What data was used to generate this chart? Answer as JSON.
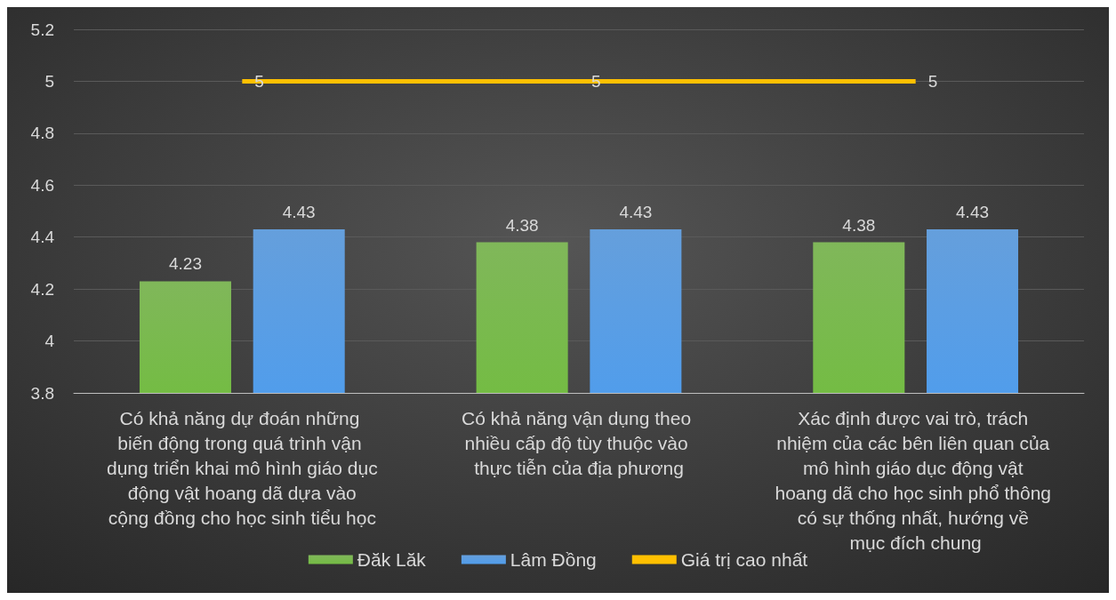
{
  "chart_data": {
    "type": "bar",
    "categories": [
      "Có khả năng dự đoán những biến động trong quá trình vận dụng triển khai mô hình giáo dục động vật hoang dã dựa vào cộng đồng cho học sinh tiểu học",
      "Có khả năng vận dụng theo nhiều cấp độ tùy thuộc vào thực tiễn của địa phương",
      "Xác định được vai trò, trách nhiệm của các bên liên quan của mô hình giáo dục động vật hoang dã cho học sinh phổ thông có sự thống nhất, hướng về mục đích chung"
    ],
    "series": [
      {
        "name": "Đăk Lăk",
        "color": "#6aab3e",
        "values": [
          4.23,
          4.38,
          4.38
        ]
      },
      {
        "name": "Lâm Đồng",
        "color": "#4a8fd6",
        "values": [
          4.43,
          4.43,
          4.43
        ]
      },
      {
        "name": "Giá trị cao nhất",
        "type": "line",
        "color": "#ffc000",
        "values": [
          5,
          5,
          5
        ]
      }
    ],
    "ylim": [
      3.8,
      5.2
    ],
    "yticks": [
      3.8,
      4,
      4.2,
      4.4,
      4.6,
      4.8,
      5,
      5.2
    ],
    "grid": "y",
    "legend": "bottom",
    "data_labels": true,
    "marker": "none"
  }
}
